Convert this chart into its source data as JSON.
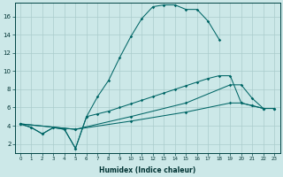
{
  "xlabel": "Humidex (Indice chaleur)",
  "bg_color": "#cce8e8",
  "grid_color": "#aacccc",
  "line_color": "#006666",
  "xlim": [
    -0.5,
    23.5
  ],
  "ylim": [
    1.0,
    17.5
  ],
  "xticks": [
    0,
    1,
    2,
    3,
    4,
    5,
    6,
    7,
    8,
    9,
    10,
    11,
    12,
    13,
    14,
    15,
    16,
    17,
    18,
    19,
    20,
    21,
    22,
    23
  ],
  "yticks": [
    2,
    4,
    6,
    8,
    10,
    12,
    14,
    16
  ],
  "curve1_x": [
    0,
    1,
    2,
    3,
    4,
    5,
    6,
    7,
    8,
    9,
    10,
    11,
    12,
    13,
    14,
    15,
    16,
    17,
    18
  ],
  "curve1_y": [
    4.2,
    3.8,
    3.1,
    3.8,
    3.6,
    1.5,
    5.0,
    7.2,
    9.0,
    11.5,
    13.8,
    15.8,
    17.1,
    17.3,
    17.3,
    16.8,
    16.8,
    15.5,
    13.5
  ],
  "curve2_x": [
    0,
    1,
    2,
    3,
    4,
    5,
    6,
    7,
    8,
    9,
    10,
    11,
    12,
    13,
    14,
    15,
    16,
    17,
    18,
    19,
    20,
    21,
    22,
    23
  ],
  "curve2_y": [
    4.2,
    3.8,
    3.1,
    3.8,
    3.6,
    1.5,
    5.0,
    5.3,
    5.6,
    6.0,
    6.4,
    6.8,
    7.2,
    7.6,
    8.0,
    8.4,
    8.8,
    9.2,
    9.5,
    9.5,
    6.5,
    6.2,
    5.9,
    5.9
  ],
  "curve3_x": [
    0,
    5,
    10,
    15,
    19,
    20,
    21,
    22,
    23
  ],
  "curve3_y": [
    4.2,
    3.6,
    5.0,
    6.5,
    8.5,
    8.5,
    7.0,
    5.9,
    5.9
  ],
  "curve4_x": [
    0,
    5,
    10,
    15,
    19,
    20,
    21,
    22,
    23
  ],
  "curve4_y": [
    4.2,
    3.6,
    4.5,
    5.5,
    6.5,
    6.5,
    6.2,
    5.9,
    5.9
  ]
}
